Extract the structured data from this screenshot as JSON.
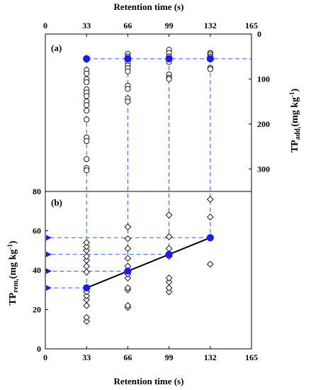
{
  "colors": {
    "accent": "#1a1aff",
    "axis": "#000000",
    "dashed": "#3355ff"
  },
  "chart_data": [
    {
      "panel": "(a)",
      "type": "scatter",
      "xlabel": "Retention time (s)",
      "ylabel": "TPadd,(mg kg-1)",
      "ylabel_main": "TP",
      "ylabel_sub": "add,",
      "ylabel_tail": "(mg kg",
      "ylabel_sup": "-1",
      "ylabel_close": ")",
      "xlim": [
        0,
        165
      ],
      "ylim": [
        0,
        350
      ],
      "y_inverted": true,
      "x_axis_position": "top",
      "y_axis_position": "right",
      "xticks": [
        "0",
        "33",
        "66",
        "99",
        "132",
        "165"
      ],
      "yticks": [
        "0",
        "100",
        "200",
        "300"
      ],
      "series": [
        {
          "marker": "open-circle",
          "points": [
            [
              33,
              54
            ],
            [
              33,
              57
            ],
            [
              33,
              80
            ],
            [
              33,
              88
            ],
            [
              33,
              100
            ],
            [
              33,
              107
            ],
            [
              33,
              123
            ],
            [
              33,
              130
            ],
            [
              33,
              138
            ],
            [
              33,
              150
            ],
            [
              33,
              158
            ],
            [
              33,
              170
            ],
            [
              33,
              190
            ],
            [
              33,
              230
            ],
            [
              33,
              238
            ],
            [
              33,
              278
            ],
            [
              33,
              298
            ],
            [
              33,
              303
            ],
            [
              66,
              44
            ],
            [
              66,
              50
            ],
            [
              66,
              57
            ],
            [
              66,
              62
            ],
            [
              66,
              70
            ],
            [
              66,
              76
            ],
            [
              66,
              83
            ],
            [
              66,
              115
            ],
            [
              66,
              122
            ],
            [
              66,
              143
            ],
            [
              66,
              150
            ],
            [
              99,
              35
            ],
            [
              99,
              42
            ],
            [
              99,
              50
            ],
            [
              99,
              55
            ],
            [
              99,
              62
            ],
            [
              99,
              90
            ],
            [
              99,
              97
            ],
            [
              99,
              100
            ],
            [
              132,
              42
            ],
            [
              132,
              45
            ],
            [
              132,
              50
            ],
            [
              132,
              75
            ],
            [
              132,
              78
            ]
          ]
        },
        {
          "marker": "filled-circle",
          "points": [
            [
              33,
              55
            ],
            [
              66,
              55
            ],
            [
              99,
              55
            ],
            [
              132,
              55
            ]
          ]
        }
      ]
    },
    {
      "panel": "(b)",
      "type": "scatter",
      "xlabel": "Retention time (s)",
      "ylabel": "TPrem,(mg kg-1)",
      "ylabel_main": "TP",
      "ylabel_sub": "rem,",
      "ylabel_tail": "(mg kg",
      "ylabel_sup": "-1",
      "ylabel_close": ")",
      "xlim": [
        0,
        165
      ],
      "ylim": [
        0,
        80
      ],
      "xticks": [
        "0",
        "33",
        "66",
        "99",
        "132",
        "165"
      ],
      "yticks": [
        "0",
        "20",
        "40",
        "60",
        "80"
      ],
      "series": [
        {
          "marker": "open-diamond",
          "points": [
            [
              33,
              14
            ],
            [
              33,
              16
            ],
            [
              33,
              22
            ],
            [
              33,
              25
            ],
            [
              33,
              27
            ],
            [
              33,
              29
            ],
            [
              33,
              39
            ],
            [
              33,
              42
            ],
            [
              33,
              45
            ],
            [
              33,
              47
            ],
            [
              33,
              50
            ],
            [
              33,
              52
            ],
            [
              33,
              54
            ],
            [
              66,
              21
            ],
            [
              66,
              22
            ],
            [
              66,
              30
            ],
            [
              66,
              31
            ],
            [
              66,
              36
            ],
            [
              66,
              38
            ],
            [
              66,
              42
            ],
            [
              66,
              46
            ],
            [
              66,
              51
            ],
            [
              66,
              56
            ],
            [
              66,
              62
            ],
            [
              99,
              29
            ],
            [
              99,
              31
            ],
            [
              99,
              34
            ],
            [
              99,
              36
            ],
            [
              99,
              47
            ],
            [
              99,
              51
            ],
            [
              99,
              57
            ],
            [
              99,
              68
            ],
            [
              132,
              43
            ],
            [
              132,
              67
            ],
            [
              132,
              76
            ]
          ]
        },
        {
          "marker": "filled-circle",
          "points": [
            [
              33,
              31
            ],
            [
              66,
              39.5
            ],
            [
              99,
              48
            ],
            [
              132,
              56.5
            ]
          ]
        }
      ],
      "trend_line": [
        [
          33,
          31
        ],
        [
          132,
          56.5
        ]
      ],
      "arrows": [
        31,
        39.5,
        48,
        56.5
      ]
    }
  ]
}
